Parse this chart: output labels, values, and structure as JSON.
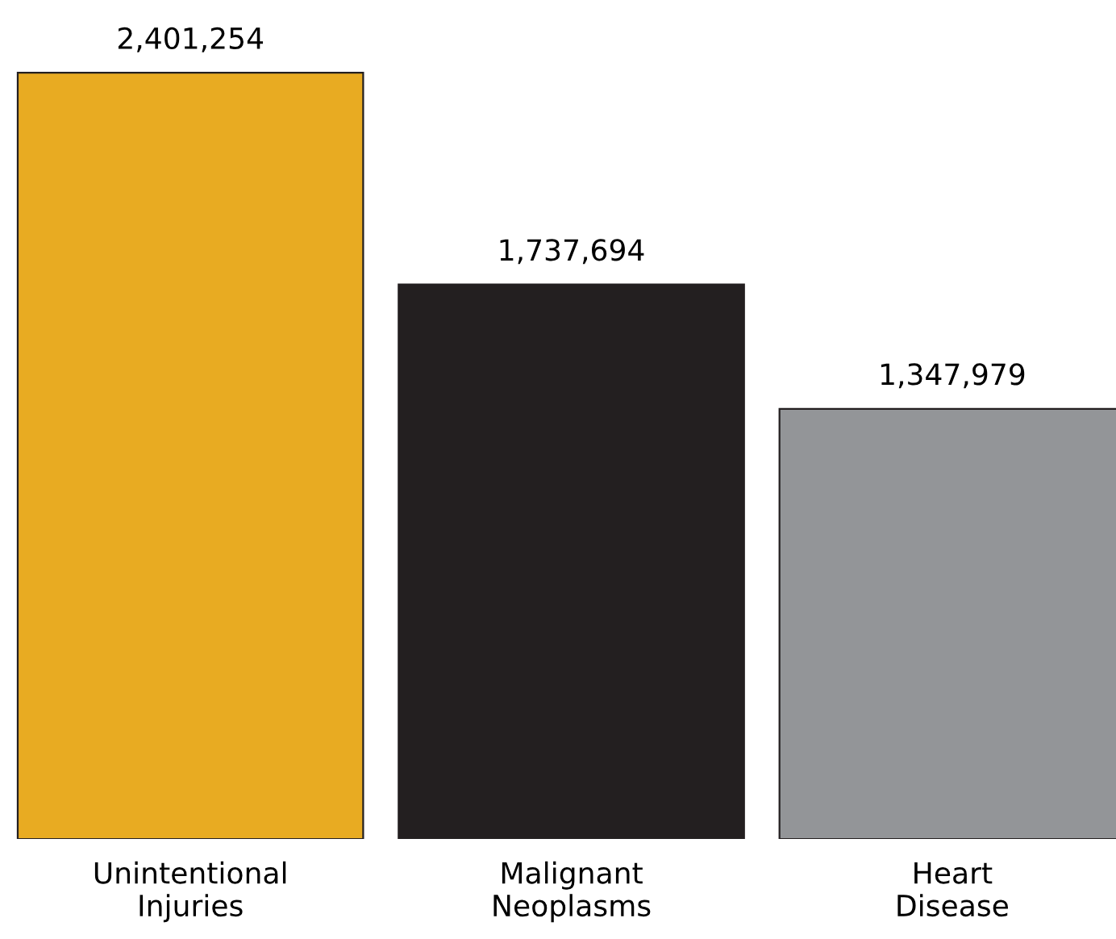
{
  "chart_data": {
    "type": "bar",
    "categories": [
      "Unintentional\nInjuries",
      "Malignant\nNeoplasms",
      "Heart\nDisease"
    ],
    "values": [
      2401254,
      1737694,
      1347979
    ],
    "colors": [
      "#e8ab22",
      "#231f20",
      "#939598"
    ],
    "value_labels": [
      "2,401,254",
      "1,737,694",
      "1,347,979"
    ],
    "grid": false,
    "legend": false
  }
}
